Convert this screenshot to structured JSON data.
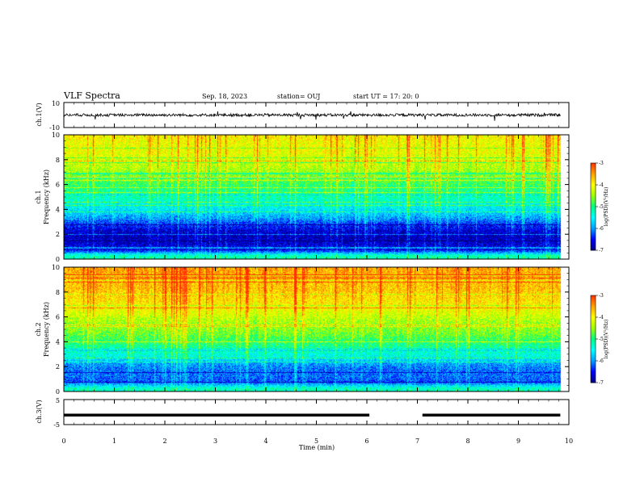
{
  "header": {
    "title": "VLF Spectra",
    "date": "Sep. 18, 2023",
    "station": "station= OUJ",
    "start_ut": "start  UT  =   17: 20: 0"
  },
  "chart_data": [
    {
      "type": "line",
      "panel": "ch1-waveform",
      "ylabel": "ch.1(V)",
      "ylim": [
        -10,
        10
      ],
      "yticks": [
        "10",
        "-10"
      ],
      "color": "#000000"
    },
    {
      "type": "heatmap",
      "panel": "ch1-spectrogram",
      "ylabel": "ch.1\nFrequency (kHz)",
      "ylim": [
        0,
        10
      ],
      "yticks": [
        "0",
        "2",
        "4",
        "6",
        "8",
        "10"
      ],
      "colorbar": {
        "label": "log(PSD)(V²/Hz)",
        "range": [
          -7,
          -3
        ],
        "ticks": [
          "-3",
          "-4",
          "-5",
          "-6",
          "-7"
        ]
      },
      "profile_note_free": true,
      "freq_khz": [
        0.25,
        0.75,
        1.25,
        1.75,
        2.25,
        2.75,
        3.25,
        3.75,
        4.25,
        4.75,
        5.25,
        5.75,
        6.25,
        6.75,
        7.25,
        7.75,
        8.25,
        8.75,
        9.25,
        9.75
      ],
      "log_psd": [
        -5.2,
        -6.6,
        -6.7,
        -6.8,
        -6.7,
        -6.4,
        -6.0,
        -5.7,
        -5.5,
        -5.3,
        -5.1,
        -5.0,
        -4.8,
        -4.6,
        -4.4,
        -4.3,
        -4.2,
        -4.1,
        -4.1,
        -4.0
      ]
    },
    {
      "type": "heatmap",
      "panel": "ch2-spectrogram",
      "ylabel": "ch.2\nFrequency (kHz)",
      "ylim": [
        0,
        10
      ],
      "yticks": [
        "0",
        "2",
        "4",
        "6",
        "8",
        "10"
      ],
      "colorbar": {
        "label": "log(PSD)(V²/Hz)",
        "range": [
          -7,
          -3
        ],
        "ticks": [
          "-3",
          "-4",
          "-5",
          "-6",
          "-7"
        ]
      },
      "freq_khz": [
        0.25,
        0.75,
        1.25,
        1.75,
        2.25,
        2.75,
        3.25,
        3.75,
        4.25,
        4.75,
        5.25,
        5.75,
        6.25,
        6.75,
        7.25,
        7.75,
        8.25,
        8.75,
        9.25,
        9.75
      ],
      "log_psd": [
        -5.3,
        -6.3,
        -6.2,
        -6.2,
        -6.0,
        -5.6,
        -5.3,
        -5.1,
        -4.9,
        -4.7,
        -4.6,
        -4.5,
        -4.3,
        -4.1,
        -4.0,
        -3.9,
        -3.8,
        -3.8,
        -3.7,
        -3.7
      ]
    },
    {
      "type": "line",
      "panel": "ch3-waveform",
      "ylabel": "ch.3(V)",
      "ylim": [
        -5,
        5
      ],
      "yticks": [
        "5",
        "-5"
      ],
      "segments": [
        {
          "x": [
            0,
            6.05
          ],
          "y": -1.2
        },
        {
          "x": [
            7.1,
            9.83
          ],
          "y": -1.2
        }
      ],
      "color": "#000000"
    }
  ],
  "xaxis": {
    "label": "Time (min)",
    "range": [
      0,
      10
    ],
    "ticks": [
      "0",
      "1",
      "2",
      "3",
      "4",
      "5",
      "6",
      "7",
      "8",
      "9",
      "10"
    ]
  },
  "data_end_min": 9.83,
  "colormap": [
    "#000080",
    "#0000ff",
    "#00a0ff",
    "#00ffff",
    "#00ff80",
    "#a0ff00",
    "#ffff00",
    "#ffa000",
    "#ff3000",
    "#ffffff"
  ]
}
